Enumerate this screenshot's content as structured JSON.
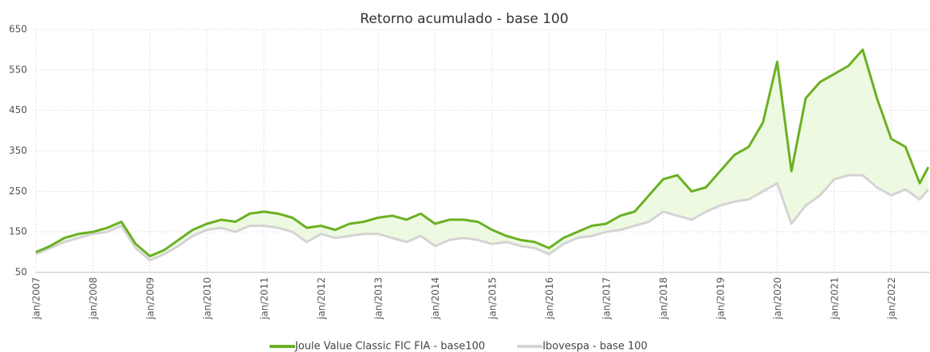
{
  "chart_data": {
    "type": "line",
    "title": "Retorno acumulado - base 100",
    "x": [
      2007,
      2007.25,
      2007.5,
      2007.75,
      2008,
      2008.25,
      2008.5,
      2008.75,
      2009,
      2009.25,
      2009.5,
      2009.75,
      2010,
      2010.25,
      2010.5,
      2010.75,
      2011,
      2011.25,
      2011.5,
      2011.75,
      2012,
      2012.25,
      2012.5,
      2012.75,
      2013,
      2013.25,
      2013.5,
      2013.75,
      2014,
      2014.25,
      2014.5,
      2014.75,
      2015,
      2015.25,
      2015.5,
      2015.75,
      2016,
      2016.25,
      2016.5,
      2016.75,
      2017,
      2017.25,
      2017.5,
      2017.75,
      2018,
      2018.25,
      2018.5,
      2018.75,
      2019,
      2019.25,
      2019.5,
      2019.75,
      2020,
      2020.25,
      2020.5,
      2020.75,
      2021,
      2021.25,
      2021.5,
      2021.75,
      2022,
      2022.25,
      2022.5,
      2022.65
    ],
    "series": [
      {
        "name": "Joule Value Classic FIC FIA - base100",
        "color": "#6ab023",
        "values": [
          100,
          115,
          135,
          145,
          150,
          160,
          175,
          120,
          90,
          105,
          130,
          155,
          170,
          180,
          175,
          195,
          200,
          195,
          185,
          160,
          165,
          155,
          170,
          175,
          185,
          190,
          180,
          195,
          170,
          180,
          180,
          175,
          155,
          140,
          130,
          125,
          110,
          135,
          150,
          165,
          170,
          190,
          200,
          240,
          280,
          290,
          250,
          260,
          300,
          340,
          360,
          420,
          570,
          300,
          480,
          520,
          540,
          560,
          600,
          480,
          380,
          360,
          270,
          310
        ]
      },
      {
        "name": "Ibovespa - base 100",
        "color": "#d4d4d4",
        "values": [
          95,
          110,
          125,
          135,
          145,
          150,
          165,
          110,
          80,
          95,
          115,
          140,
          155,
          160,
          150,
          165,
          165,
          160,
          150,
          125,
          145,
          135,
          140,
          145,
          145,
          135,
          125,
          140,
          115,
          130,
          135,
          130,
          120,
          125,
          115,
          110,
          95,
          120,
          135,
          140,
          150,
          155,
          165,
          175,
          200,
          190,
          180,
          200,
          215,
          225,
          230,
          250,
          270,
          170,
          215,
          240,
          280,
          290,
          290,
          260,
          240,
          255,
          230,
          255
        ]
      }
    ],
    "xlim": [
      2007,
      2022.68
    ],
    "xticks": [
      {
        "value": 2007,
        "label": "jan/2007"
      },
      {
        "value": 2008,
        "label": "jan/2008"
      },
      {
        "value": 2009,
        "label": "jan/2009"
      },
      {
        "value": 2010,
        "label": "jan/2010"
      },
      {
        "value": 2011,
        "label": "jan/2011"
      },
      {
        "value": 2012,
        "label": "jan/2012"
      },
      {
        "value": 2013,
        "label": "jan/2013"
      },
      {
        "value": 2014,
        "label": "jan/2014"
      },
      {
        "value": 2015,
        "label": "jan/2015"
      },
      {
        "value": 2016,
        "label": "jan/2016"
      },
      {
        "value": 2017,
        "label": "jan/2017"
      },
      {
        "value": 2018,
        "label": "jan/2018"
      },
      {
        "value": 2019,
        "label": "jan/2019"
      },
      {
        "value": 2020,
        "label": "jan/2020"
      },
      {
        "value": 2021,
        "label": "jan/2021"
      },
      {
        "value": 2022,
        "label": "jan/2022"
      }
    ],
    "ylim": [
      50,
      650
    ],
    "yticks": [
      50,
      150,
      250,
      350,
      450,
      550,
      650
    ],
    "grid": true,
    "legend": "bottom"
  }
}
